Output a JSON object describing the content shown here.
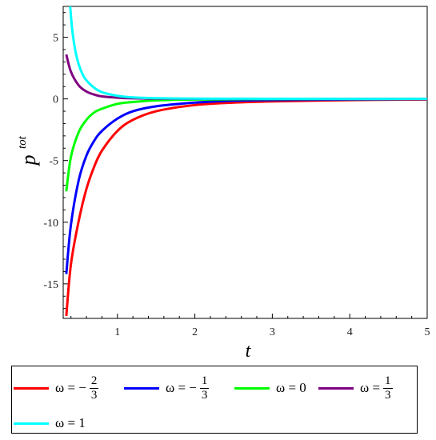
{
  "chart_data": {
    "type": "line",
    "xlabel": "t",
    "ylabel": "p",
    "ylabel_superscript": "tot",
    "xlim": [
      0.3,
      5
    ],
    "ylim": [
      -17.8,
      7.5
    ],
    "xticks": [
      1,
      2,
      3,
      4,
      5
    ],
    "yticks": [
      5,
      0,
      -5,
      -10,
      -15
    ],
    "xtick_labels": [
      "1",
      "2",
      "3",
      "4",
      "5"
    ],
    "ytick_labels": [
      "5",
      "0",
      "-5",
      "-10",
      "-15"
    ],
    "grid": false,
    "legend_position": "bottom",
    "series": [
      {
        "name": "ω = −2/3",
        "legend": {
          "prefix": "ω = −",
          "num": "2",
          "den": "3",
          "value": ""
        },
        "color": "#ff0000",
        "x": [
          0.34,
          0.4,
          0.5,
          0.6,
          0.7,
          0.8,
          1.0,
          1.2,
          1.5,
          2.0,
          2.5,
          3.0,
          4.0,
          5.0
        ],
        "y": [
          -17.6,
          -13.4,
          -9.9,
          -7.3,
          -5.5,
          -4.2,
          -2.6,
          -1.7,
          -1.0,
          -0.5,
          -0.3,
          -0.2,
          -0.1,
          -0.05
        ]
      },
      {
        "name": "ω = −1/3",
        "legend": {
          "prefix": "ω = −",
          "num": "1",
          "den": "3",
          "value": ""
        },
        "color": "#0000ff",
        "x": [
          0.34,
          0.4,
          0.5,
          0.6,
          0.7,
          0.8,
          1.0,
          1.2,
          1.5,
          2.0,
          2.5,
          3.0,
          4.0,
          5.0
        ],
        "y": [
          -14.2,
          -10.2,
          -6.6,
          -4.6,
          -3.4,
          -2.6,
          -1.6,
          -1.0,
          -0.6,
          -0.3,
          -0.15,
          -0.1,
          -0.05,
          -0.02
        ]
      },
      {
        "name": "ω = 0",
        "legend": {
          "prefix": "ω = ",
          "num": "",
          "den": "",
          "value": "0"
        },
        "color": "#00ff00",
        "x": [
          0.34,
          0.4,
          0.5,
          0.6,
          0.7,
          0.8,
          1.0,
          1.2,
          1.5,
          2.0,
          3.0,
          4.0,
          5.0
        ],
        "y": [
          -7.5,
          -4.7,
          -2.7,
          -1.7,
          -1.1,
          -0.8,
          -0.4,
          -0.25,
          -0.12,
          -0.05,
          -0.02,
          -0.01,
          0
        ]
      },
      {
        "name": "ω = 1/3",
        "legend": {
          "prefix": "ω = ",
          "num": "1",
          "den": "3",
          "value": ""
        },
        "color": "#800080",
        "x": [
          0.34,
          0.4,
          0.5,
          0.6,
          0.7,
          0.8,
          1.0,
          1.2,
          1.5,
          2.0,
          3.0,
          4.0,
          5.0
        ],
        "y": [
          3.6,
          2.2,
          1.1,
          0.6,
          0.35,
          0.2,
          0.1,
          0.05,
          0.02,
          0.01,
          0,
          0,
          0
        ]
      },
      {
        "name": "ω = 1",
        "legend": {
          "prefix": "ω = ",
          "num": "",
          "den": "",
          "value": "1"
        },
        "color": "#00ffff",
        "x": [
          0.39,
          0.42,
          0.46,
          0.5,
          0.55,
          0.6,
          0.7,
          0.8,
          1.0,
          1.2,
          1.5,
          2.0,
          3.0,
          4.0,
          5.0
        ],
        "y": [
          7.5,
          5.4,
          3.8,
          2.8,
          2.0,
          1.5,
          0.9,
          0.55,
          0.25,
          0.12,
          0.06,
          0.02,
          0.01,
          0,
          0
        ]
      }
    ]
  }
}
